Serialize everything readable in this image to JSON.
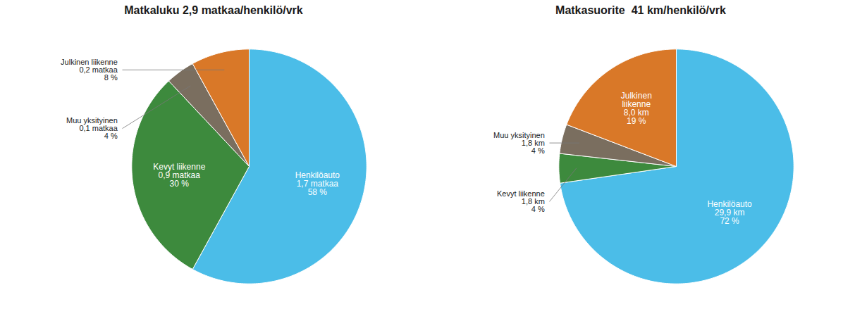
{
  "chart_data": [
    {
      "type": "pie",
      "title": "Matkaluku 2,9 matkaa/henkilö/vrk",
      "values": [
        58,
        30,
        4,
        8
      ],
      "value_labels": [
        "Henkilöauto\n1,7 matkaa\n58 %",
        "Kevyt liikenne\n0,9 matkaa\n30 %",
        "Muu yksityinen\n0,1 matkaa\n4 %",
        "Julkinen liikenne\n0,2 matkaa\n8 %"
      ],
      "colors": [
        "#4BBDE8",
        "#3D8A3D",
        "#7A6E5F",
        "#D97828"
      ],
      "data_labels": true,
      "tick_labels": false
    },
    {
      "type": "pie",
      "title": "Matkasuorite  41 km/henkilö/vrk",
      "values": [
        72,
        4,
        4,
        19
      ],
      "value_labels": [
        "Henkilöauto\n29,9 km\n72 %",
        "Kevyt liikenne\n1,8 km\n4 %",
        "Muu yksityinen\n1,8 km\n4 %",
        "Julkinen\nliikenne\n8,0 km\n19 %"
      ],
      "colors": [
        "#4BBDE8",
        "#3D8A3D",
        "#7A6E5F",
        "#D97828"
      ],
      "data_labels": true,
      "tick_labels": false
    }
  ]
}
